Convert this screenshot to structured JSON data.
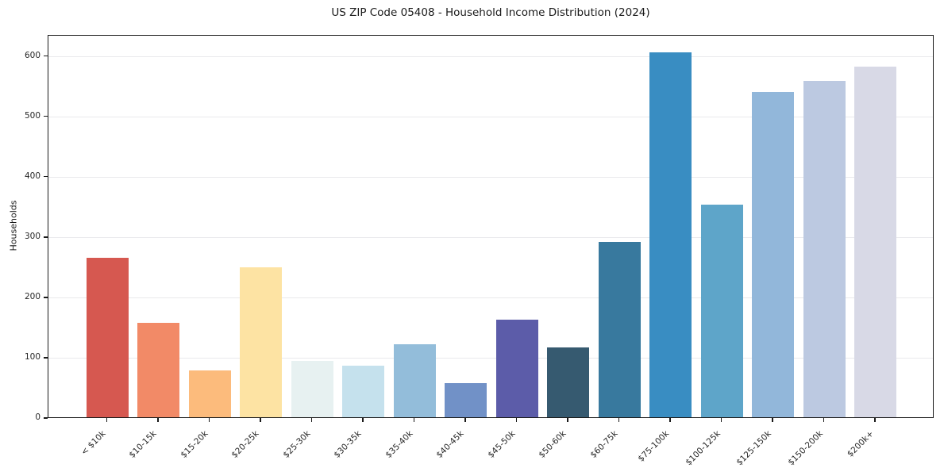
{
  "chart_data": {
    "type": "bar",
    "title": "US ZIP Code 05408 - Household Income Distribution (2024)",
    "xlabel": "",
    "ylabel": "Households",
    "categories": [
      "< $10k",
      "$10-15k",
      "$15-20k",
      "$20-25k",
      "$25-30k",
      "$30-35k",
      "$35-40k",
      "$40-45k",
      "$45-50k",
      "$50-60k",
      "$60-75k",
      "$75-100k",
      "$100-125k",
      "$125-150k",
      "$150-200k",
      "$200k+"
    ],
    "values": [
      264,
      156,
      77,
      248,
      93,
      85,
      121,
      57,
      162,
      116,
      290,
      605,
      352,
      539,
      558,
      581
    ],
    "bar_colors": [
      "#d65850",
      "#f28a67",
      "#fcbb7c",
      "#fde3a3",
      "#e7f1f1",
      "#c5e1ed",
      "#93bdda",
      "#7191c7",
      "#5c5ca9",
      "#365a70",
      "#38799e",
      "#398dc2",
      "#5ea5c9",
      "#92b7da",
      "#bcc9e1",
      "#d8d9e6"
    ],
    "ylim": [
      0,
      635
    ],
    "yticks": [
      0,
      100,
      200,
      300,
      400,
      500,
      600
    ],
    "grid": "horizontal-only",
    "legend": "none",
    "x_tick_rotation_deg": 45
  },
  "colors": {
    "background": "#ffffff",
    "spine": "#1a1a1a",
    "gridline": "#e9e9ec",
    "text": "#262626"
  }
}
